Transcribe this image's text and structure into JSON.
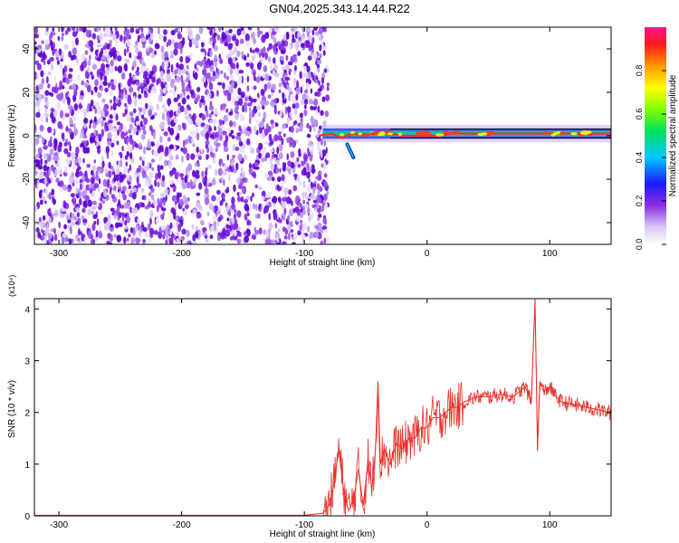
{
  "title": "GN04.2025.343.14.44.R22",
  "chart_data": [
    {
      "type": "heatmap",
      "xlabel": "Height of straight line (km)",
      "ylabel": "Frequency (Hz)",
      "xlim": [
        -320,
        150
      ],
      "ylim": [
        -50,
        50
      ],
      "x_ticks": [
        -300,
        -200,
        -100,
        0,
        100
      ],
      "y_ticks": [
        -40,
        -20,
        0,
        20,
        40
      ],
      "colorbar": {
        "label": "Normalized spectral amplitude",
        "range": [
          0,
          1
        ],
        "ticks": [
          "0.0",
          "0.2",
          "0.4",
          "0.6",
          "0.8"
        ]
      },
      "noise_region_x": [
        -320,
        -85
      ],
      "signal_band": {
        "x_range": [
          -85,
          150
        ],
        "center_freq": 1,
        "points": [
          {
            "x": -88,
            "y": 0
          },
          {
            "x": -78,
            "y": 1
          },
          {
            "x": -70,
            "y": -1
          },
          {
            "x": -60,
            "y": 1
          },
          {
            "x": -50,
            "y": 0
          },
          {
            "x": -40,
            "y": 2
          },
          {
            "x": -30,
            "y": 1
          },
          {
            "x": -20,
            "y": 0
          },
          {
            "x": -10,
            "y": 0
          },
          {
            "x": 0,
            "y": 0
          },
          {
            "x": 10,
            "y": 0
          },
          {
            "x": 20,
            "y": 1
          },
          {
            "x": 40,
            "y": 1
          },
          {
            "x": 60,
            "y": 1
          },
          {
            "x": 80,
            "y": 1
          },
          {
            "x": 100,
            "y": 1
          },
          {
            "x": 120,
            "y": 1
          },
          {
            "x": 150,
            "y": 1
          }
        ],
        "branch": [
          {
            "x": -65,
            "y": -4
          },
          {
            "x": -60,
            "y": -10
          }
        ]
      }
    },
    {
      "type": "line",
      "xlabel": "Height of straight line (km)",
      "ylabel": "SNR (10 * v/v)",
      "y_multiplier": "(x10⁴)",
      "xlim": [
        -320,
        150
      ],
      "ylim": [
        0,
        4.2
      ],
      "x_ticks": [
        -300,
        -200,
        -100,
        0,
        100
      ],
      "y_ticks": [
        0,
        1,
        2,
        3,
        4
      ],
      "color": "#e8302a",
      "series": [
        {
          "points": [
            [
              -320,
              0.01
            ],
            [
              -200,
              0.01
            ],
            [
              -100,
              0.01
            ],
            [
              -85,
              0.05
            ],
            [
              -80,
              0.2
            ],
            [
              -76,
              0.6
            ],
            [
              -72,
              1.3
            ],
            [
              -68,
              0.5
            ],
            [
              -64,
              0.1
            ],
            [
              -60,
              0.3
            ],
            [
              -56,
              0.9
            ],
            [
              -52,
              0.2
            ],
            [
              -48,
              1.1
            ],
            [
              -45,
              0.5
            ],
            [
              -42,
              1.3
            ],
            [
              -40,
              2.6
            ],
            [
              -38,
              1.0
            ],
            [
              -35,
              1.3
            ],
            [
              -30,
              1.0
            ],
            [
              -25,
              1.4
            ],
            [
              -20,
              1.3
            ],
            [
              -15,
              1.5
            ],
            [
              -10,
              1.5
            ],
            [
              -5,
              1.7
            ],
            [
              0,
              1.7
            ],
            [
              5,
              1.9
            ],
            [
              10,
              1.9
            ],
            [
              15,
              2.0
            ],
            [
              20,
              2.1
            ],
            [
              25,
              2.1
            ],
            [
              30,
              2.2
            ],
            [
              35,
              2.25
            ],
            [
              40,
              2.3
            ],
            [
              50,
              2.3
            ],
            [
              60,
              2.35
            ],
            [
              70,
              2.3
            ],
            [
              75,
              2.4
            ],
            [
              80,
              2.5
            ],
            [
              85,
              2.2
            ],
            [
              88,
              4.2
            ],
            [
              90,
              1.3
            ],
            [
              92,
              2.6
            ],
            [
              95,
              2.4
            ],
            [
              100,
              2.5
            ],
            [
              105,
              2.3
            ],
            [
              110,
              2.2
            ],
            [
              120,
              2.15
            ],
            [
              130,
              2.1
            ],
            [
              140,
              2.05
            ],
            [
              150,
              1.98
            ]
          ]
        }
      ]
    }
  ]
}
